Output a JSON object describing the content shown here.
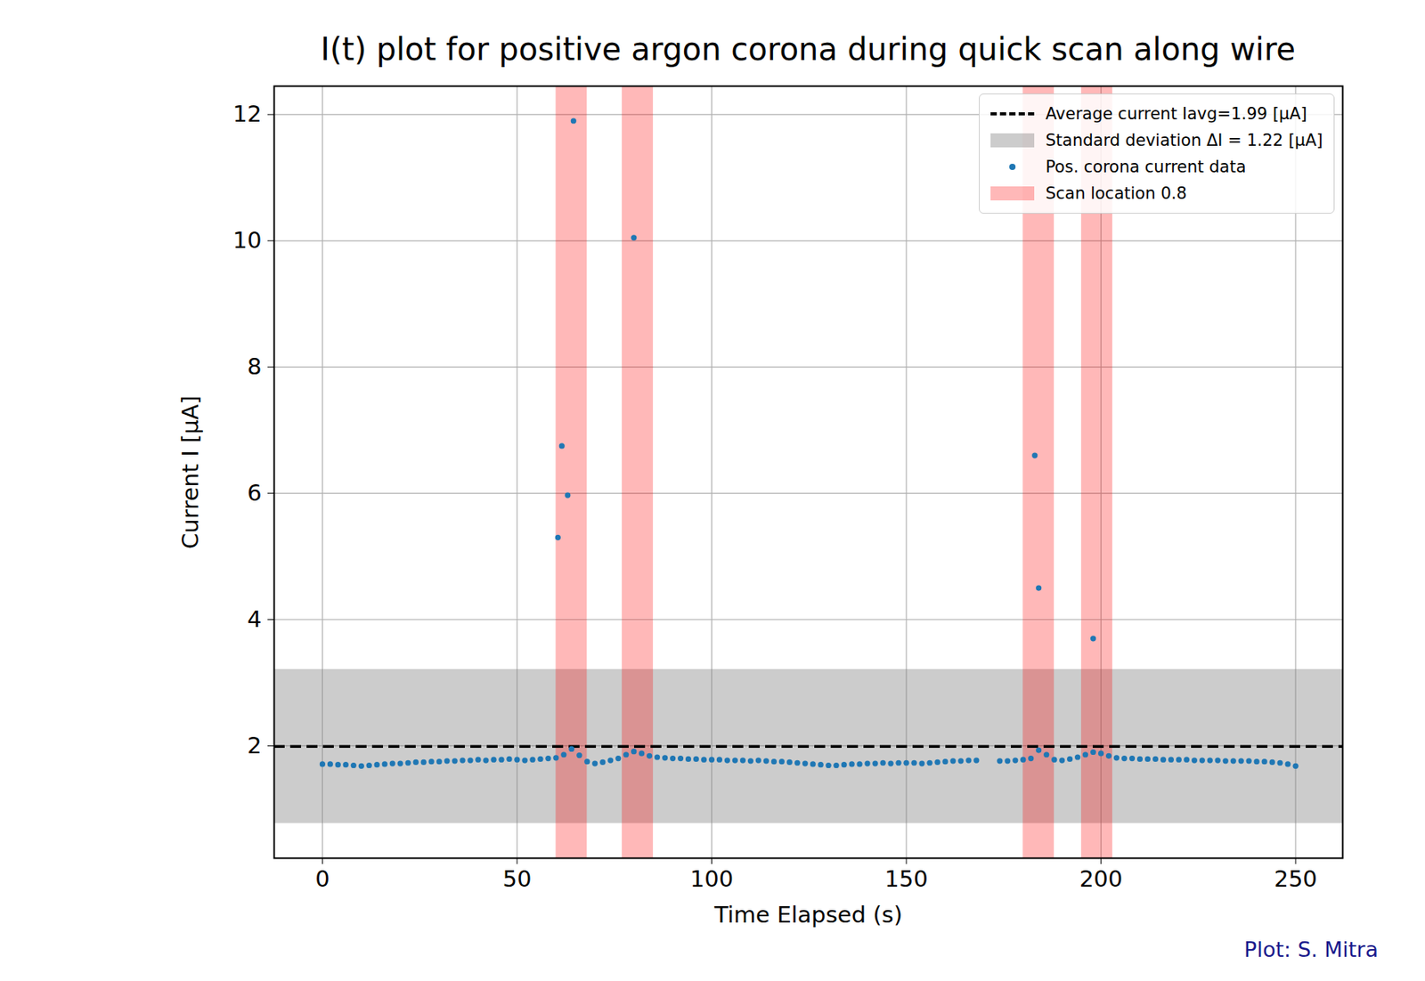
{
  "chart_data": {
    "type": "scatter",
    "title": "I(t) plot for positive argon corona during quick scan along wire",
    "x_label": "Time Elapsed (s)",
    "y_label": "Current I [μA]",
    "xlim": [
      -12.4,
      262.1
    ],
    "ylim": [
      0.22,
      12.45
    ],
    "xticks": [
      0,
      50,
      100,
      150,
      200,
      250
    ],
    "yticks": [
      2,
      4,
      6,
      8,
      10,
      12
    ],
    "grid": true,
    "legend": "upper right",
    "series": [
      {
        "name": "Pos. corona current data",
        "color": "#1f77b4",
        "marker": "circle",
        "x": [
          0,
          2,
          4,
          6,
          8,
          10,
          12,
          14,
          16,
          18,
          20,
          22,
          24,
          26,
          28,
          30,
          32,
          34,
          36,
          38,
          40,
          42,
          44,
          46,
          48,
          50,
          52,
          54,
          56,
          58,
          60,
          62,
          64,
          66,
          68,
          70,
          72,
          74,
          76,
          78,
          80,
          82,
          84,
          86,
          88,
          90,
          92,
          94,
          96,
          98,
          100,
          102,
          104,
          106,
          108,
          110,
          112,
          114,
          116,
          118,
          120,
          122,
          124,
          126,
          128,
          130,
          132,
          134,
          136,
          138,
          140,
          142,
          144,
          146,
          148,
          150,
          152,
          154,
          156,
          158,
          160,
          162,
          164,
          166,
          168,
          174,
          176,
          178,
          180,
          182,
          184,
          186,
          188,
          190,
          192,
          194,
          196,
          198,
          200,
          202,
          204,
          206,
          208,
          210,
          212,
          214,
          216,
          218,
          220,
          222,
          224,
          226,
          228,
          230,
          232,
          234,
          236,
          238,
          240,
          242,
          244,
          246,
          248,
          250,
          60.5,
          61.5,
          63,
          64.5,
          80,
          183,
          184,
          198
        ],
        "values": [
          1.71,
          1.71,
          1.7,
          1.7,
          1.69,
          1.68,
          1.69,
          1.7,
          1.71,
          1.72,
          1.72,
          1.73,
          1.74,
          1.74,
          1.75,
          1.75,
          1.76,
          1.76,
          1.77,
          1.77,
          1.78,
          1.77,
          1.78,
          1.78,
          1.79,
          1.78,
          1.77,
          1.78,
          1.79,
          1.8,
          1.81,
          1.86,
          1.95,
          1.85,
          1.75,
          1.72,
          1.74,
          1.77,
          1.8,
          1.86,
          1.91,
          1.88,
          1.84,
          1.82,
          1.81,
          1.8,
          1.8,
          1.79,
          1.79,
          1.78,
          1.78,
          1.78,
          1.77,
          1.77,
          1.77,
          1.76,
          1.77,
          1.76,
          1.75,
          1.75,
          1.74,
          1.73,
          1.72,
          1.71,
          1.7,
          1.69,
          1.69,
          1.7,
          1.71,
          1.71,
          1.72,
          1.72,
          1.73,
          1.72,
          1.73,
          1.73,
          1.73,
          1.72,
          1.73,
          1.74,
          1.75,
          1.76,
          1.76,
          1.77,
          1.77,
          1.76,
          1.76,
          1.77,
          1.78,
          1.8,
          1.93,
          1.86,
          1.78,
          1.77,
          1.79,
          1.82,
          1.86,
          1.9,
          1.88,
          1.84,
          1.81,
          1.8,
          1.8,
          1.79,
          1.79,
          1.79,
          1.78,
          1.78,
          1.78,
          1.78,
          1.77,
          1.77,
          1.77,
          1.77,
          1.76,
          1.76,
          1.76,
          1.76,
          1.75,
          1.75,
          1.74,
          1.73,
          1.71,
          1.68,
          5.3,
          6.75,
          5.97,
          11.9,
          10.05,
          6.6,
          4.5,
          3.7
        ]
      }
    ],
    "average": {
      "name": "Average current Iavg=1.99 [μA]",
      "value": 1.99,
      "color": "black",
      "line_style": "dashed"
    },
    "std": {
      "name": "Standard deviation ΔI = 1.22 [μA]",
      "value": 1.22,
      "color": "gray"
    },
    "scan_locations": {
      "name": "Scan location 0.8",
      "color": "red",
      "ranges": [
        [
          60,
          68
        ],
        [
          77,
          85
        ],
        [
          180,
          188
        ],
        [
          195,
          203
        ]
      ]
    },
    "caption": "Plot: S. Mitra"
  }
}
